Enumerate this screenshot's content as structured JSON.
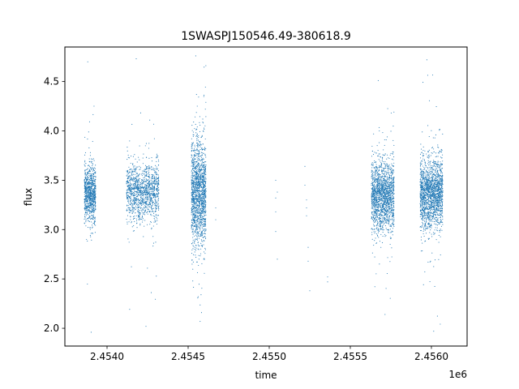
{
  "chart_data": {
    "type": "scatter",
    "title": "1SWASPJ150546.49-380618.9",
    "xlabel": "time",
    "ylabel": "flux",
    "x_offset_label": "1e6",
    "xlim": [
      2.45374,
      2.45622
    ],
    "ylim": [
      1.82,
      4.85
    ],
    "x_ticks": [
      2.454,
      2.4545,
      2.455,
      2.4555,
      2.456
    ],
    "x_tick_labels": [
      "2.4540",
      "2.4545",
      "2.4550",
      "2.4555",
      "2.4560"
    ],
    "y_ticks": [
      2.0,
      2.5,
      3.0,
      3.5,
      4.0,
      4.5
    ],
    "y_tick_labels": [
      "2.0",
      "2.5",
      "3.0",
      "3.5",
      "4.0",
      "4.5"
    ],
    "grid": false,
    "point_color": "#1f77b4",
    "clusters": [
      {
        "x_start": 2.45386,
        "x_end": 2.45393,
        "center": 3.36,
        "spread": 0.14,
        "min": 1.96,
        "max": 4.7,
        "count": 900
      },
      {
        "x_start": 2.45412,
        "x_end": 2.45432,
        "center": 3.38,
        "spread": 0.14,
        "min": 2.02,
        "max": 4.73,
        "count": 1300
      },
      {
        "x_start": 2.45452,
        "x_end": 2.45461,
        "center": 3.36,
        "spread": 0.26,
        "min": 2.07,
        "max": 4.76,
        "count": 1600
      },
      {
        "x_start": 2.45563,
        "x_end": 2.45577,
        "center": 3.34,
        "spread": 0.17,
        "min": 2.14,
        "max": 4.51,
        "count": 1700
      },
      {
        "x_start": 2.45593,
        "x_end": 2.45607,
        "center": 3.36,
        "spread": 0.17,
        "min": 1.97,
        "max": 4.72,
        "count": 1800
      }
    ],
    "sparse_points": [
      {
        "x": 2.45467,
        "y": 3.22
      },
      {
        "x": 2.45467,
        "y": 3.1
      },
      {
        "x": 2.45504,
        "y": 3.5
      },
      {
        "x": 2.45504,
        "y": 3.32
      },
      {
        "x": 2.45504,
        "y": 3.18
      },
      {
        "x": 2.45504,
        "y": 2.98
      },
      {
        "x": 2.45505,
        "y": 2.7
      },
      {
        "x": 2.45505,
        "y": 3.38
      },
      {
        "x": 2.45522,
        "y": 3.64
      },
      {
        "x": 2.45522,
        "y": 3.45
      },
      {
        "x": 2.45523,
        "y": 3.3
      },
      {
        "x": 2.45523,
        "y": 3.22
      },
      {
        "x": 2.45523,
        "y": 3.14
      },
      {
        "x": 2.45524,
        "y": 2.82
      },
      {
        "x": 2.45524,
        "y": 2.68
      },
      {
        "x": 2.45525,
        "y": 2.38
      },
      {
        "x": 2.45536,
        "y": 2.52
      },
      {
        "x": 2.45536,
        "y": 2.47
      }
    ]
  }
}
